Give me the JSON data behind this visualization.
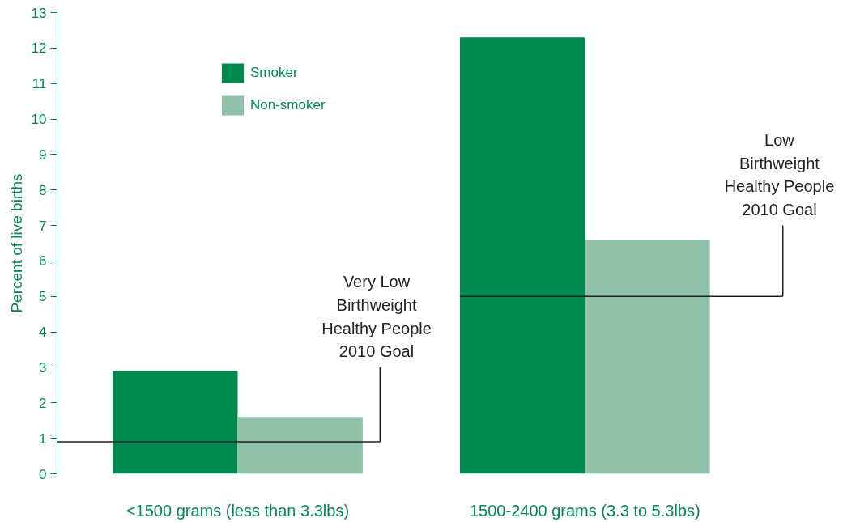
{
  "chart_data": {
    "type": "bar",
    "ylabel": "Percent of live births",
    "categories": [
      "<1500 grams (less than 3.3lbs)",
      "1500-2400 grams (3.3 to 5.3lbs)"
    ],
    "series": [
      {
        "name": "Smoker",
        "color": "#00894f",
        "values": [
          2.9,
          12.3
        ]
      },
      {
        "name": "Non-smoker",
        "color": "#8fc1a8",
        "values": [
          1.6,
          6.6
        ]
      }
    ],
    "ylim": [
      0,
      13
    ],
    "yticks": [
      0,
      1,
      2,
      3,
      4,
      5,
      6,
      7,
      8,
      9,
      10,
      11,
      12,
      13
    ],
    "ref_lines": [
      {
        "axis": "y",
        "value": 0.9,
        "label": "Very Low\nBirthweight\nHealthy People\n2010 Goal",
        "color": "#222222"
      },
      {
        "axis": "y",
        "value": 5.0,
        "label": "Low\nBirthweight\nHealthy People\n2010 Goal",
        "color": "#222222"
      }
    ],
    "grid": false,
    "legend": "top left"
  }
}
